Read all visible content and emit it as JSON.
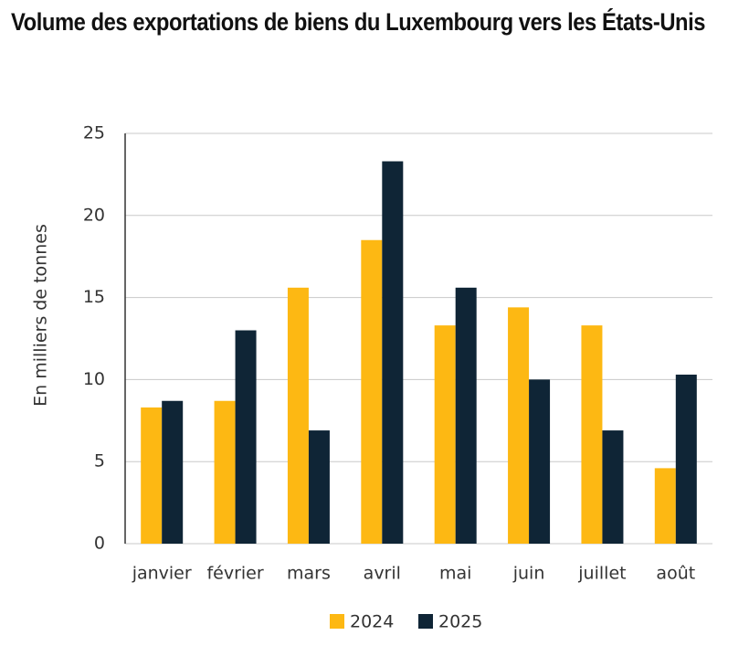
{
  "chart_data": {
    "type": "bar",
    "title": "Volume des exportations de biens du Luxembourg vers les États-Unis",
    "y_label": "En milliers de tonnes",
    "categories": [
      "janvier",
      "février",
      "mars",
      "avril",
      "mai",
      "juin",
      "juillet",
      "août"
    ],
    "series": [
      {
        "name": "2024",
        "color": "#fdb813",
        "values": [
          8.3,
          8.7,
          15.6,
          18.5,
          13.3,
          14.4,
          13.3,
          4.6
        ]
      },
      {
        "name": "2025",
        "color": "#0f2536",
        "values": [
          8.7,
          13.0,
          6.9,
          23.3,
          15.6,
          10.0,
          6.9,
          10.3
        ]
      }
    ],
    "ylim": [
      0,
      25
    ],
    "yticks": [
      0,
      5,
      10,
      15,
      20,
      25
    ],
    "grid": true,
    "legend": "bottom"
  }
}
